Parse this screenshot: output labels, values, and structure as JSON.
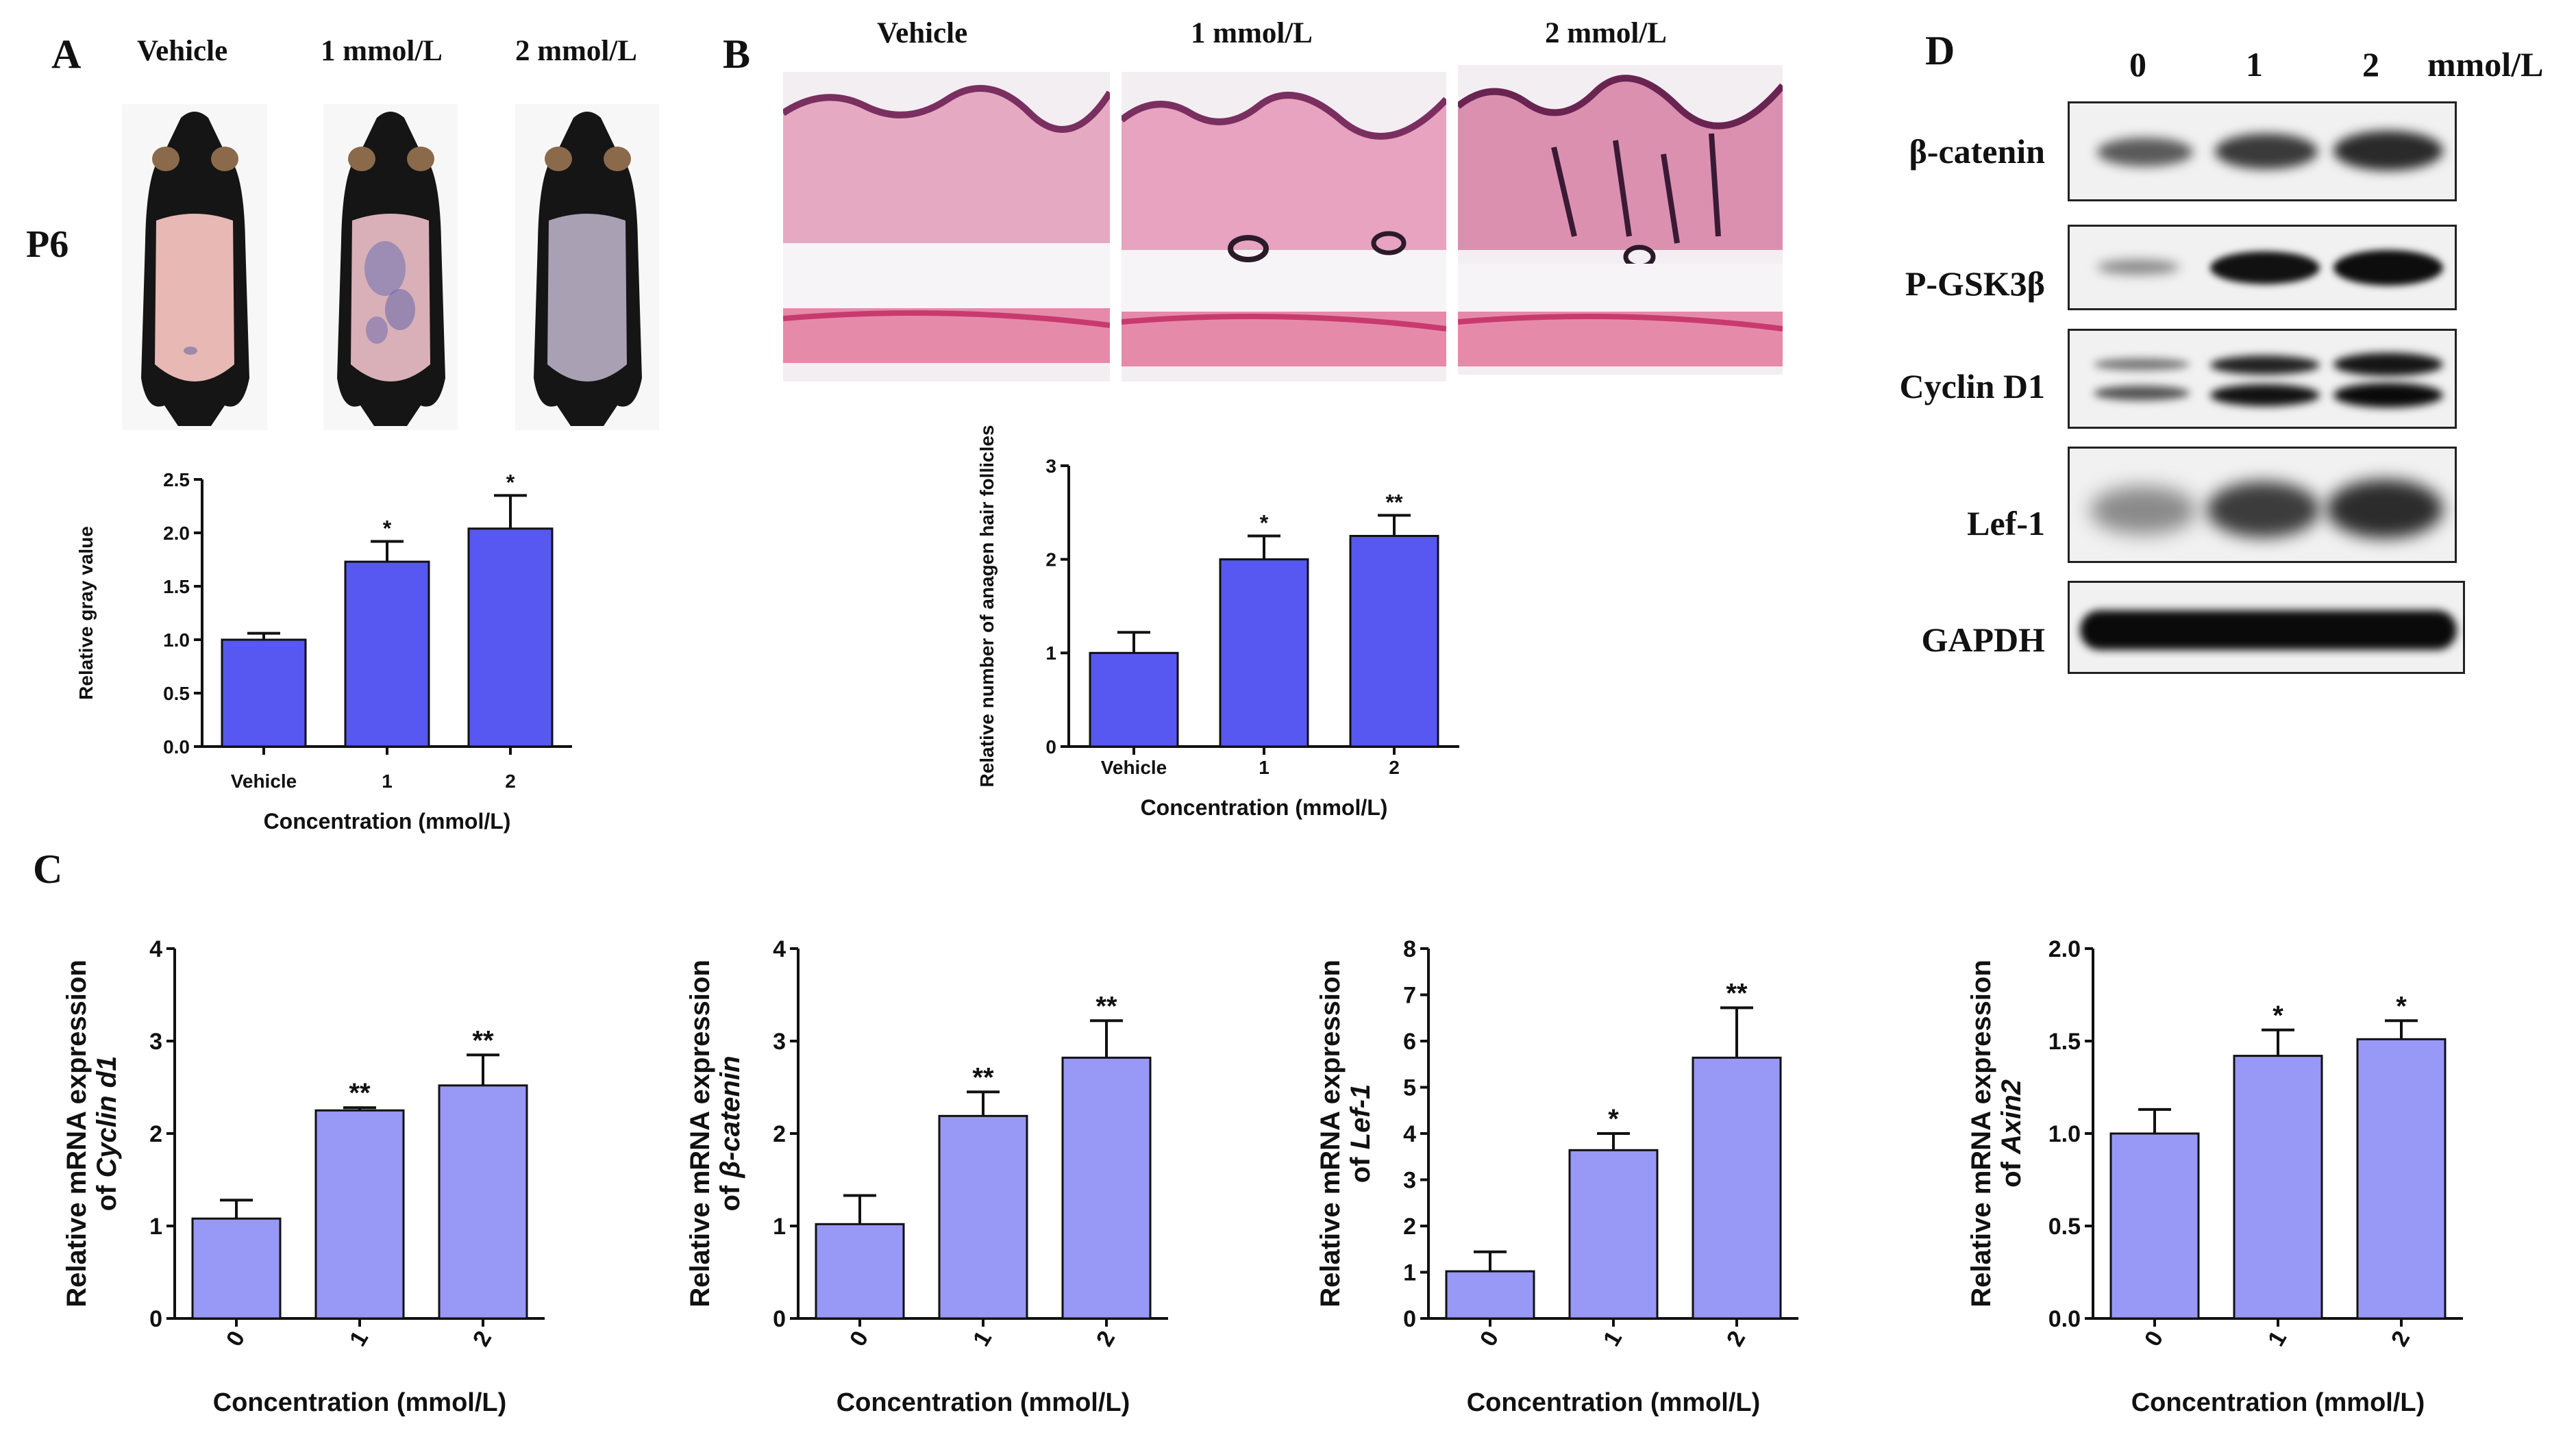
{
  "panel_a": {
    "label": "A",
    "row_label": "P6",
    "photo_labels": [
      "Vehicle",
      "1 mmol/L",
      "2 mmol/L"
    ]
  },
  "panel_b": {
    "label": "B",
    "image_labels": [
      "Vehicle",
      "1 mmol/L",
      "2 mmol/L"
    ]
  },
  "panel_c": {
    "label": "C"
  },
  "panel_d": {
    "label": "D",
    "lane_labels": [
      "0",
      "1",
      "2"
    ],
    "unit": "mmol/L",
    "proteins": [
      "β-catenin",
      "P-GSK3β",
      "Cyclin D1",
      "Lef-1",
      "GAPDH"
    ]
  },
  "colors": {
    "bar_dark": "#5757f2",
    "bar_light": "#9898f6",
    "skin_histology": "#e9a6bf",
    "blot_band": "#1c1c1c"
  },
  "chart_data": [
    {
      "id": "A",
      "type": "bar",
      "categories": [
        "Vehicle",
        "1",
        "2"
      ],
      "values": [
        1.0,
        1.73,
        2.04
      ],
      "errors": [
        0.06,
        0.19,
        0.31
      ],
      "significance": [
        "",
        "*",
        "*"
      ],
      "ylim": [
        0,
        2.5
      ],
      "yticks": [
        "0.0",
        "0.5",
        "1.0",
        "1.5",
        "2.0",
        "2.5"
      ],
      "ylabel": "Relative gray value",
      "xlabel": "Concentration (mmol/L)"
    },
    {
      "id": "B",
      "type": "bar",
      "categories": [
        "Vehicle",
        "1",
        "2"
      ],
      "values": [
        1.0,
        2.0,
        2.25
      ],
      "errors": [
        0.22,
        0.25,
        0.22
      ],
      "significance": [
        "",
        "*",
        "**"
      ],
      "ylim": [
        0,
        3
      ],
      "yticks": [
        "0",
        "1",
        "2",
        "3"
      ],
      "ylabel": "Relative number of anagen hair follicles",
      "xlabel": "Concentration (mmol/L)"
    },
    {
      "id": "C1",
      "type": "bar",
      "categories": [
        "0",
        "1",
        "2"
      ],
      "values": [
        1.08,
        2.25,
        2.52
      ],
      "errors": [
        0.2,
        0.03,
        0.33
      ],
      "significance": [
        "",
        "**",
        "**"
      ],
      "ylim": [
        0,
        4
      ],
      "yticks": [
        "0",
        "1",
        "2",
        "3",
        "4"
      ],
      "ylabel_line1": "Relative mRNA expression",
      "ylabel_line2_prefix": "of ",
      "ylabel_gene": "Cyclin d1",
      "xlabel": "Concentration (mmol/L)"
    },
    {
      "id": "C2",
      "type": "bar",
      "categories": [
        "0",
        "1",
        "2"
      ],
      "values": [
        1.02,
        2.19,
        2.82
      ],
      "errors": [
        0.31,
        0.26,
        0.4
      ],
      "significance": [
        "",
        "**",
        "**"
      ],
      "ylim": [
        0,
        4
      ],
      "yticks": [
        "0",
        "1",
        "2",
        "3",
        "4"
      ],
      "ylabel_line1": "Relative mRNA expression",
      "ylabel_line2_prefix": "of ",
      "ylabel_gene": "β-catenin",
      "xlabel": "Concentration (mmol/L)"
    },
    {
      "id": "C3",
      "type": "bar",
      "categories": [
        "0",
        "1",
        "2"
      ],
      "values": [
        1.02,
        3.64,
        5.64
      ],
      "errors": [
        0.42,
        0.36,
        1.08
      ],
      "significance": [
        "",
        "*",
        "**"
      ],
      "ylim": [
        0,
        8
      ],
      "yticks": [
        "0",
        "1",
        "2",
        "3",
        "4",
        "5",
        "6",
        "7",
        "8"
      ],
      "ylabel_line1": "Relative mRNA expression",
      "ylabel_line2_prefix": "of ",
      "ylabel_gene": "Lef-1",
      "xlabel": "Concentration (mmol/L)"
    },
    {
      "id": "C4",
      "type": "bar",
      "categories": [
        "0",
        "1",
        "2"
      ],
      "values": [
        1.0,
        1.42,
        1.51
      ],
      "errors": [
        0.13,
        0.14,
        0.1
      ],
      "significance": [
        "",
        "*",
        "*"
      ],
      "ylim": [
        0,
        2.0
      ],
      "yticks": [
        "0.0",
        "0.5",
        "1.0",
        "1.5",
        "2.0"
      ],
      "ylabel_line1": "Relative mRNA expression",
      "ylabel_line2_prefix": "of ",
      "ylabel_gene": "Axin2",
      "xlabel": "Concentration (mmol/L)"
    }
  ]
}
